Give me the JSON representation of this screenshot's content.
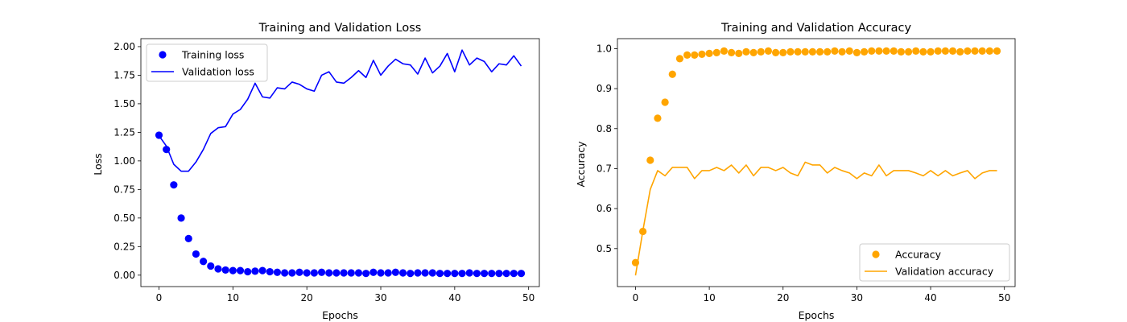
{
  "chart_data": [
    {
      "type": "line",
      "title": "Training and Validation Loss",
      "xlabel": "Epochs",
      "ylabel": "Loss",
      "xlim": [
        -2.45,
        51.45
      ],
      "ylim": [
        -0.1,
        2.07
      ],
      "xticks": [
        0,
        10,
        20,
        30,
        40,
        50
      ],
      "yticks": [
        0.0,
        0.25,
        0.5,
        0.75,
        1.0,
        1.25,
        1.5,
        1.75,
        2.0
      ],
      "ytick_decimals": 2,
      "legend": "top-left",
      "grid": false,
      "series": [
        {
          "name": "Training loss",
          "style": "scatter",
          "color": "#0000ff",
          "x": [
            0,
            1,
            2,
            3,
            4,
            5,
            6,
            7,
            8,
            9,
            10,
            11,
            12,
            13,
            14,
            15,
            16,
            17,
            18,
            19,
            20,
            21,
            22,
            23,
            24,
            25,
            26,
            27,
            28,
            29,
            30,
            31,
            32,
            33,
            34,
            35,
            36,
            37,
            38,
            39,
            40,
            41,
            42,
            43,
            44,
            45,
            46,
            47,
            48,
            49
          ],
          "values": [
            1.225,
            1.1,
            0.79,
            0.5,
            0.32,
            0.185,
            0.12,
            0.08,
            0.055,
            0.045,
            0.04,
            0.04,
            0.03,
            0.035,
            0.04,
            0.03,
            0.025,
            0.02,
            0.02,
            0.025,
            0.02,
            0.02,
            0.025,
            0.02,
            0.02,
            0.02,
            0.02,
            0.02,
            0.015,
            0.025,
            0.02,
            0.02,
            0.025,
            0.02,
            0.015,
            0.02,
            0.02,
            0.02,
            0.015,
            0.015,
            0.015,
            0.015,
            0.02,
            0.015,
            0.015,
            0.015,
            0.015,
            0.015,
            0.015,
            0.015
          ]
        },
        {
          "name": "Validation loss",
          "style": "line",
          "color": "#0000ff",
          "x": [
            0,
            1,
            2,
            3,
            4,
            5,
            6,
            7,
            8,
            9,
            10,
            11,
            12,
            13,
            14,
            15,
            16,
            17,
            18,
            19,
            20,
            21,
            22,
            23,
            24,
            25,
            26,
            27,
            28,
            29,
            30,
            31,
            32,
            33,
            34,
            35,
            36,
            37,
            38,
            39,
            40,
            41,
            42,
            43,
            44,
            45,
            46,
            47,
            48,
            49
          ],
          "values": [
            1.22,
            1.13,
            0.97,
            0.91,
            0.91,
            0.99,
            1.1,
            1.24,
            1.29,
            1.3,
            1.41,
            1.45,
            1.54,
            1.68,
            1.56,
            1.55,
            1.64,
            1.63,
            1.69,
            1.67,
            1.63,
            1.61,
            1.75,
            1.78,
            1.69,
            1.68,
            1.73,
            1.79,
            1.73,
            1.88,
            1.75,
            1.83,
            1.89,
            1.85,
            1.84,
            1.76,
            1.9,
            1.77,
            1.83,
            1.94,
            1.78,
            1.97,
            1.84,
            1.9,
            1.87,
            1.78,
            1.85,
            1.84,
            1.92,
            1.83
          ]
        }
      ]
    },
    {
      "type": "line",
      "title": "Training and Validation Accuracy",
      "xlabel": "Epochs",
      "ylabel": "Accuracy",
      "xlim": [
        -2.45,
        51.45
      ],
      "ylim": [
        0.405,
        1.025
      ],
      "xticks": [
        0,
        10,
        20,
        30,
        40,
        50
      ],
      "yticks": [
        0.5,
        0.6,
        0.7,
        0.8,
        0.9,
        1.0
      ],
      "ytick_decimals": 1,
      "legend": "bottom-right",
      "grid": false,
      "series": [
        {
          "name": "Accuracy",
          "style": "scatter",
          "color": "#ffa500",
          "x": [
            0,
            1,
            2,
            3,
            4,
            5,
            6,
            7,
            8,
            9,
            10,
            11,
            12,
            13,
            14,
            15,
            16,
            17,
            18,
            19,
            20,
            21,
            22,
            23,
            24,
            25,
            26,
            27,
            28,
            29,
            30,
            31,
            32,
            33,
            34,
            35,
            36,
            37,
            38,
            39,
            40,
            41,
            42,
            43,
            44,
            45,
            46,
            47,
            48,
            49
          ],
          "values": [
            0.465,
            0.543,
            0.721,
            0.826,
            0.866,
            0.936,
            0.975,
            0.984,
            0.984,
            0.986,
            0.988,
            0.99,
            0.994,
            0.99,
            0.988,
            0.992,
            0.99,
            0.992,
            0.994,
            0.99,
            0.99,
            0.992,
            0.992,
            0.992,
            0.992,
            0.992,
            0.992,
            0.994,
            0.992,
            0.994,
            0.99,
            0.992,
            0.994,
            0.994,
            0.994,
            0.994,
            0.992,
            0.992,
            0.994,
            0.992,
            0.992,
            0.994,
            0.994,
            0.994,
            0.992,
            0.994,
            0.994,
            0.994,
            0.994,
            0.994
          ]
        },
        {
          "name": "Validation accuracy",
          "style": "line",
          "color": "#ffa500",
          "x": [
            0,
            1,
            2,
            3,
            4,
            5,
            6,
            7,
            8,
            9,
            10,
            11,
            12,
            13,
            14,
            15,
            16,
            17,
            18,
            19,
            20,
            21,
            22,
            23,
            24,
            25,
            26,
            27,
            28,
            29,
            30,
            31,
            32,
            33,
            34,
            35,
            36,
            37,
            38,
            39,
            40,
            41,
            42,
            43,
            44,
            45,
            46,
            47,
            48,
            49
          ],
          "values": [
            0.433,
            0.545,
            0.648,
            0.695,
            0.682,
            0.703,
            0.703,
            0.703,
            0.675,
            0.695,
            0.695,
            0.703,
            0.695,
            0.709,
            0.689,
            0.709,
            0.682,
            0.703,
            0.703,
            0.695,
            0.703,
            0.689,
            0.682,
            0.716,
            0.709,
            0.709,
            0.689,
            0.703,
            0.695,
            0.689,
            0.675,
            0.689,
            0.682,
            0.709,
            0.682,
            0.695,
            0.695,
            0.695,
            0.689,
            0.682,
            0.695,
            0.682,
            0.695,
            0.682,
            0.689,
            0.695,
            0.675,
            0.689,
            0.695,
            0.695
          ]
        }
      ]
    }
  ]
}
